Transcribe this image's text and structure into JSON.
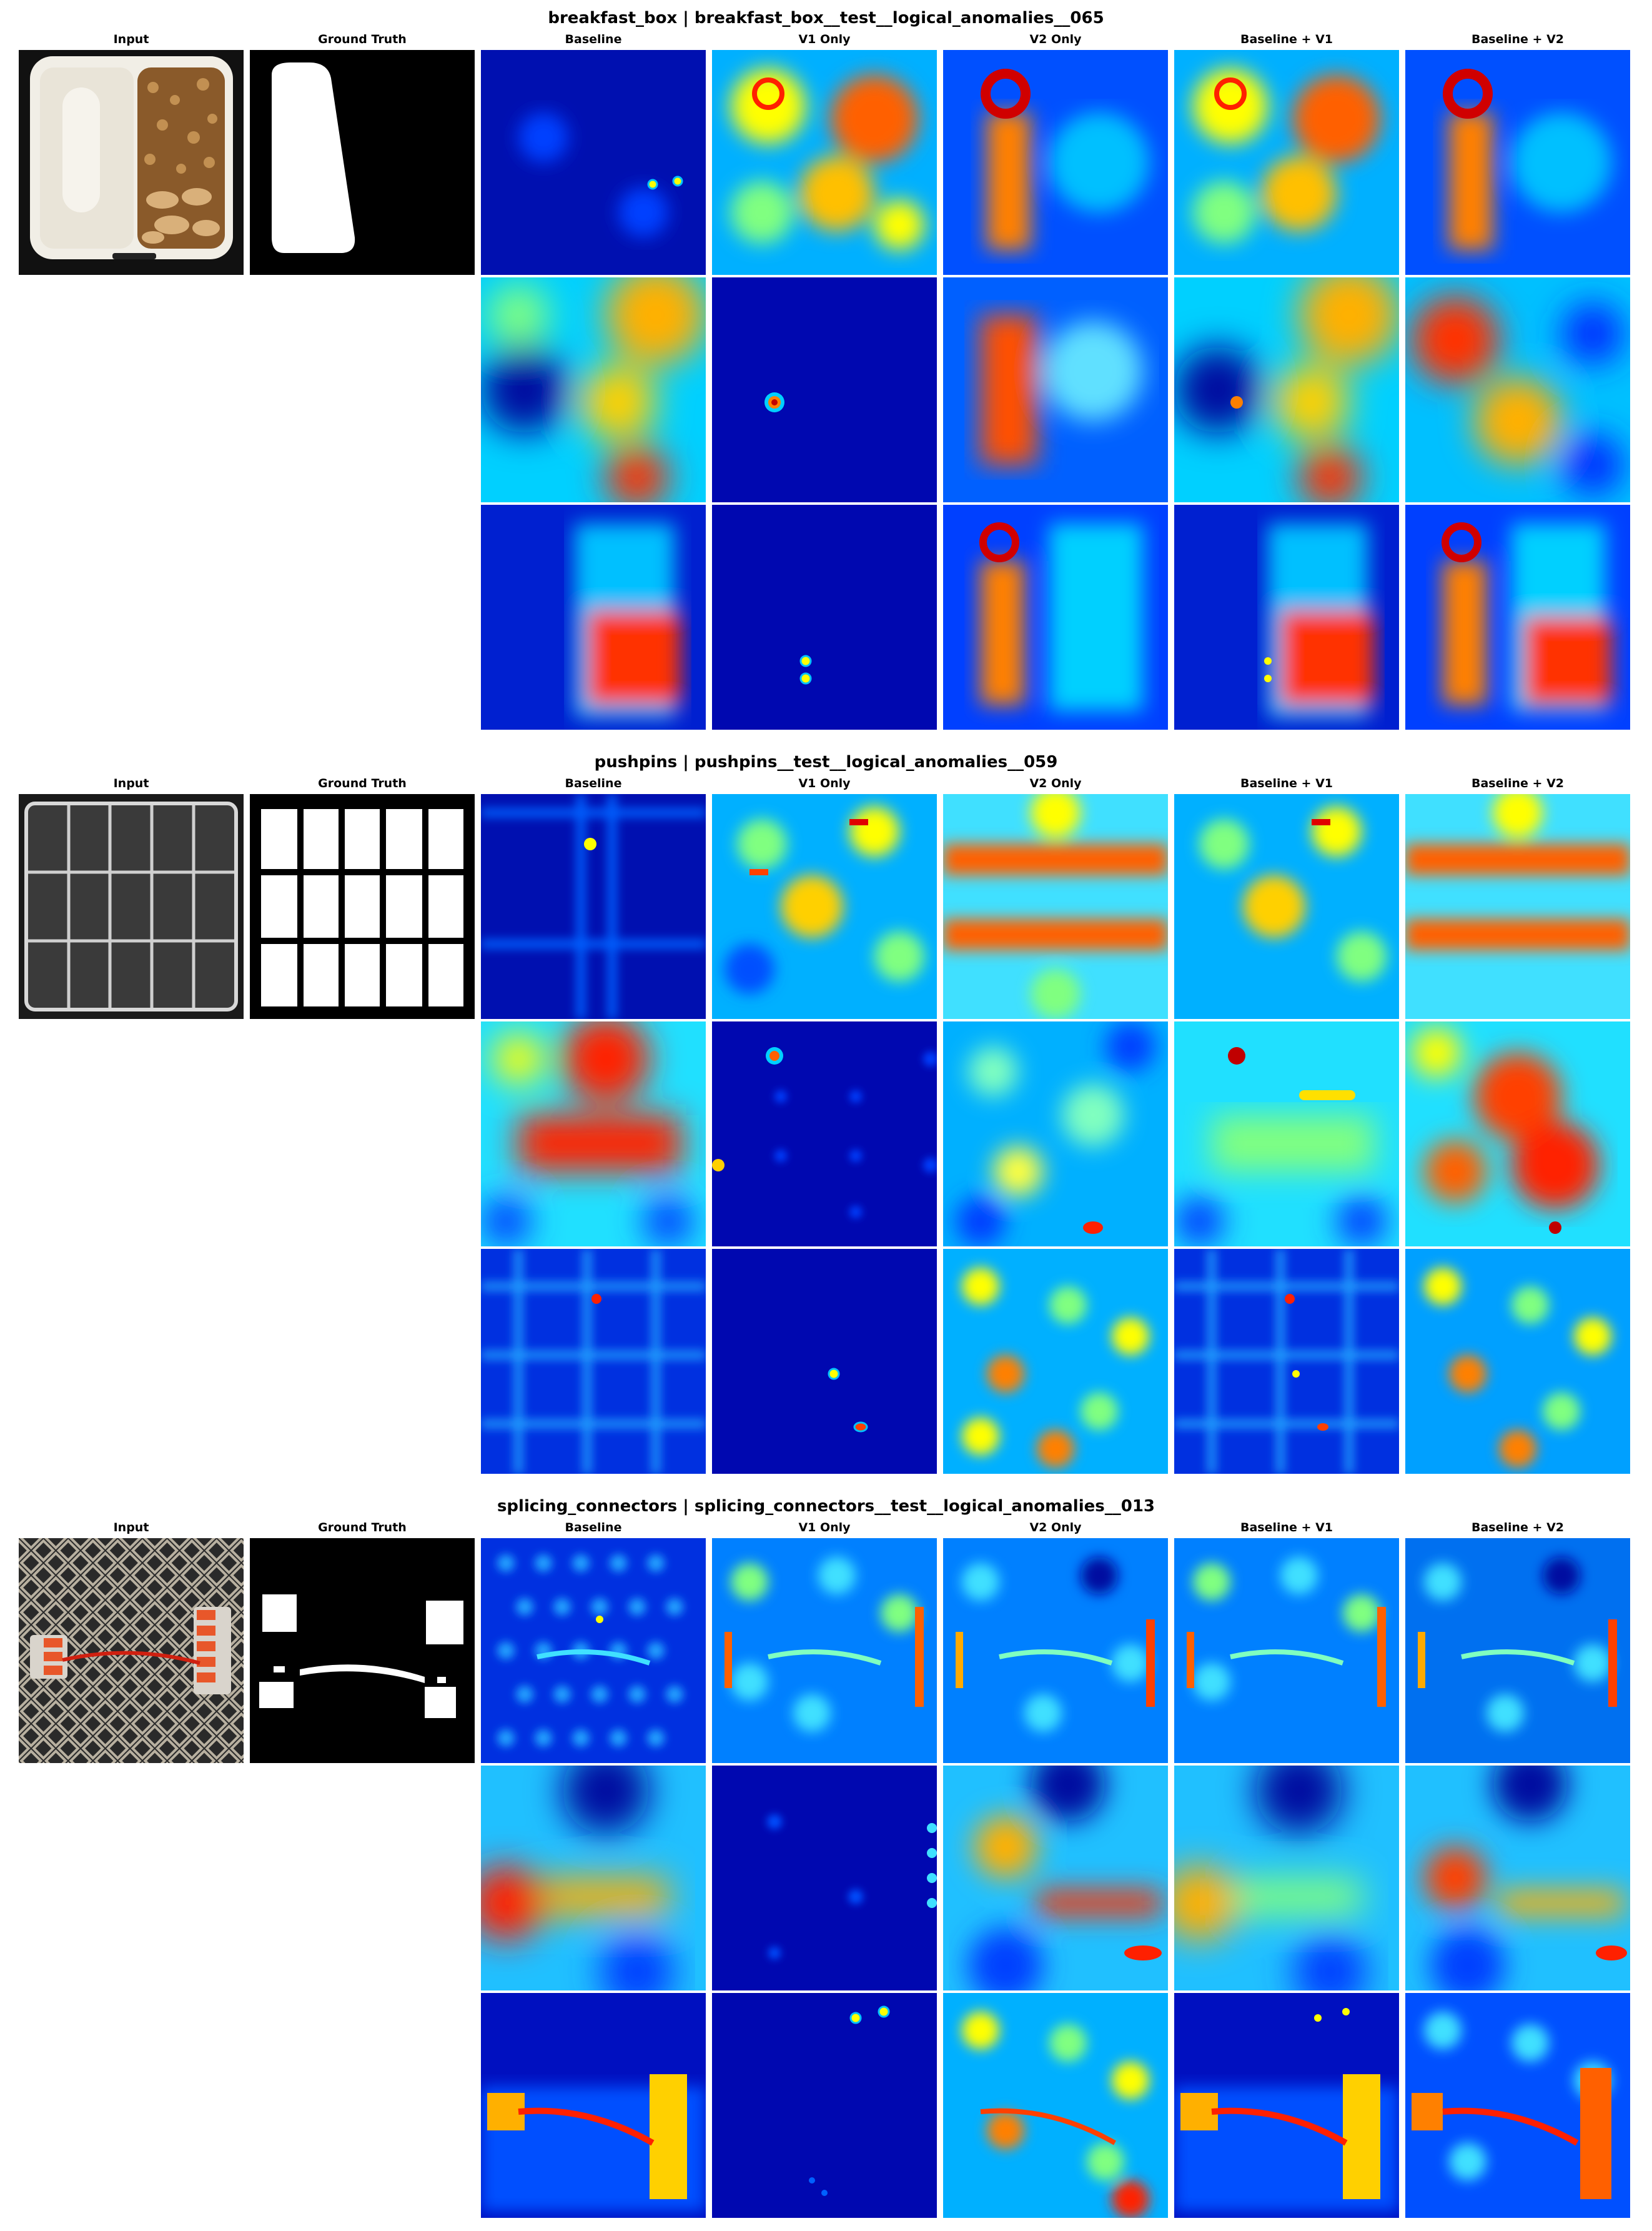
{
  "blocks": [
    {
      "title": "breakfast_box | breakfast_box__test__logical_anomalies__065",
      "labels": {
        "input": "Input",
        "ground_truth": "Ground Truth",
        "baseline": "Baseline",
        "v1_only": "V1 Only",
        "v2_only": "V2 Only",
        "baseline_v1": "Baseline + V1",
        "baseline_v2": "Baseline + V2"
      }
    },
    {
      "title": "pushpins | pushpins__test__logical_anomalies__059",
      "labels": {
        "input": "Input",
        "ground_truth": "Ground Truth",
        "baseline": "Baseline",
        "v1_only": "V1 Only",
        "v2_only": "V2 Only",
        "baseline_v1": "Baseline + V1",
        "baseline_v2": "Baseline + V2"
      }
    },
    {
      "title": "splicing_connectors | splicing_connectors__test__logical_anomalies__013",
      "labels": {
        "input": "Input",
        "ground_truth": "Ground Truth",
        "baseline": "Baseline",
        "v1_only": "V1 Only",
        "v2_only": "V2 Only",
        "baseline_v1": "Baseline + V1",
        "baseline_v2": "Baseline + V2"
      }
    }
  ],
  "colormap": [
    "#00007f",
    "#0000ff",
    "#0080ff",
    "#00ffff",
    "#80ff80",
    "#ffff00",
    "#ff8000",
    "#ff0000",
    "#800000"
  ],
  "image_content": {
    "breakfast_box_input": "breakfast box tray",
    "pushpins_input": "empty pushpin case",
    "splicing_connectors_input": "splicing connectors with red wire"
  }
}
